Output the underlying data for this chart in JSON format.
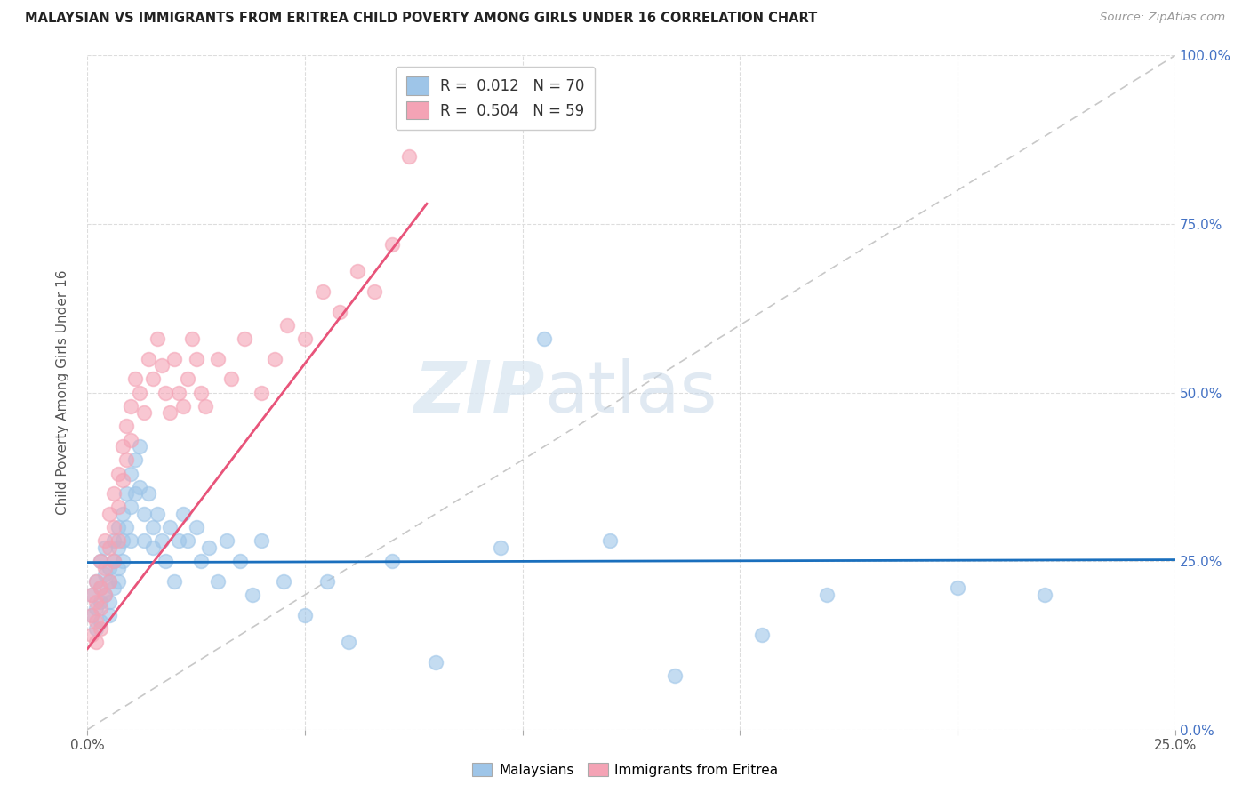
{
  "title": "MALAYSIAN VS IMMIGRANTS FROM ERITREA CHILD POVERTY AMONG GIRLS UNDER 16 CORRELATION CHART",
  "source": "Source: ZipAtlas.com",
  "ylabel": "Child Poverty Among Girls Under 16",
  "xlim": [
    0.0,
    0.25
  ],
  "ylim": [
    0.0,
    1.0
  ],
  "legend_r_blue": "0.012",
  "legend_n_blue": "70",
  "legend_r_pink": "0.504",
  "legend_n_pink": "59",
  "watermark": "ZIPatlas",
  "blue_color": "#9ec5e8",
  "pink_color": "#f4a3b5",
  "trend_blue": "#1a6fbd",
  "trend_pink": "#e8547a",
  "diag_color": "#c8c8c8",
  "background_color": "#ffffff",
  "grid_color": "#dddddd",
  "blue_trend_x": [
    0.0,
    0.25
  ],
  "blue_trend_y": [
    0.248,
    0.252
  ],
  "pink_trend_x": [
    0.0,
    0.078
  ],
  "pink_trend_y": [
    0.12,
    0.78
  ],
  "blue_x": [
    0.001,
    0.001,
    0.002,
    0.002,
    0.002,
    0.003,
    0.003,
    0.003,
    0.003,
    0.004,
    0.004,
    0.004,
    0.005,
    0.005,
    0.005,
    0.005,
    0.006,
    0.006,
    0.006,
    0.007,
    0.007,
    0.007,
    0.007,
    0.008,
    0.008,
    0.008,
    0.009,
    0.009,
    0.01,
    0.01,
    0.01,
    0.011,
    0.011,
    0.012,
    0.012,
    0.013,
    0.013,
    0.014,
    0.015,
    0.015,
    0.016,
    0.017,
    0.018,
    0.019,
    0.02,
    0.021,
    0.022,
    0.023,
    0.025,
    0.026,
    0.028,
    0.03,
    0.032,
    0.035,
    0.038,
    0.04,
    0.045,
    0.05,
    0.055,
    0.06,
    0.07,
    0.08,
    0.095,
    0.105,
    0.12,
    0.135,
    0.155,
    0.17,
    0.2,
    0.22
  ],
  "blue_y": [
    0.2,
    0.17,
    0.22,
    0.18,
    0.15,
    0.25,
    0.21,
    0.19,
    0.16,
    0.23,
    0.27,
    0.2,
    0.24,
    0.22,
    0.19,
    0.17,
    0.28,
    0.25,
    0.21,
    0.3,
    0.27,
    0.24,
    0.22,
    0.32,
    0.28,
    0.25,
    0.35,
    0.3,
    0.38,
    0.33,
    0.28,
    0.4,
    0.35,
    0.42,
    0.36,
    0.32,
    0.28,
    0.35,
    0.3,
    0.27,
    0.32,
    0.28,
    0.25,
    0.3,
    0.22,
    0.28,
    0.32,
    0.28,
    0.3,
    0.25,
    0.27,
    0.22,
    0.28,
    0.25,
    0.2,
    0.28,
    0.22,
    0.17,
    0.22,
    0.13,
    0.25,
    0.1,
    0.27,
    0.58,
    0.28,
    0.08,
    0.14,
    0.2,
    0.21,
    0.2
  ],
  "pink_x": [
    0.001,
    0.001,
    0.001,
    0.002,
    0.002,
    0.002,
    0.002,
    0.003,
    0.003,
    0.003,
    0.003,
    0.004,
    0.004,
    0.004,
    0.005,
    0.005,
    0.005,
    0.006,
    0.006,
    0.006,
    0.007,
    0.007,
    0.007,
    0.008,
    0.008,
    0.009,
    0.009,
    0.01,
    0.01,
    0.011,
    0.012,
    0.013,
    0.014,
    0.015,
    0.016,
    0.017,
    0.018,
    0.019,
    0.02,
    0.021,
    0.022,
    0.023,
    0.024,
    0.025,
    0.026,
    0.027,
    0.03,
    0.033,
    0.036,
    0.04,
    0.043,
    0.046,
    0.05,
    0.054,
    0.058,
    0.062,
    0.066,
    0.07,
    0.074
  ],
  "pink_y": [
    0.2,
    0.17,
    0.14,
    0.22,
    0.19,
    0.16,
    0.13,
    0.25,
    0.21,
    0.18,
    0.15,
    0.28,
    0.24,
    0.2,
    0.32,
    0.27,
    0.22,
    0.35,
    0.3,
    0.25,
    0.38,
    0.33,
    0.28,
    0.42,
    0.37,
    0.45,
    0.4,
    0.48,
    0.43,
    0.52,
    0.5,
    0.47,
    0.55,
    0.52,
    0.58,
    0.54,
    0.5,
    0.47,
    0.55,
    0.5,
    0.48,
    0.52,
    0.58,
    0.55,
    0.5,
    0.48,
    0.55,
    0.52,
    0.58,
    0.5,
    0.55,
    0.6,
    0.58,
    0.65,
    0.62,
    0.68,
    0.65,
    0.72,
    0.85
  ]
}
